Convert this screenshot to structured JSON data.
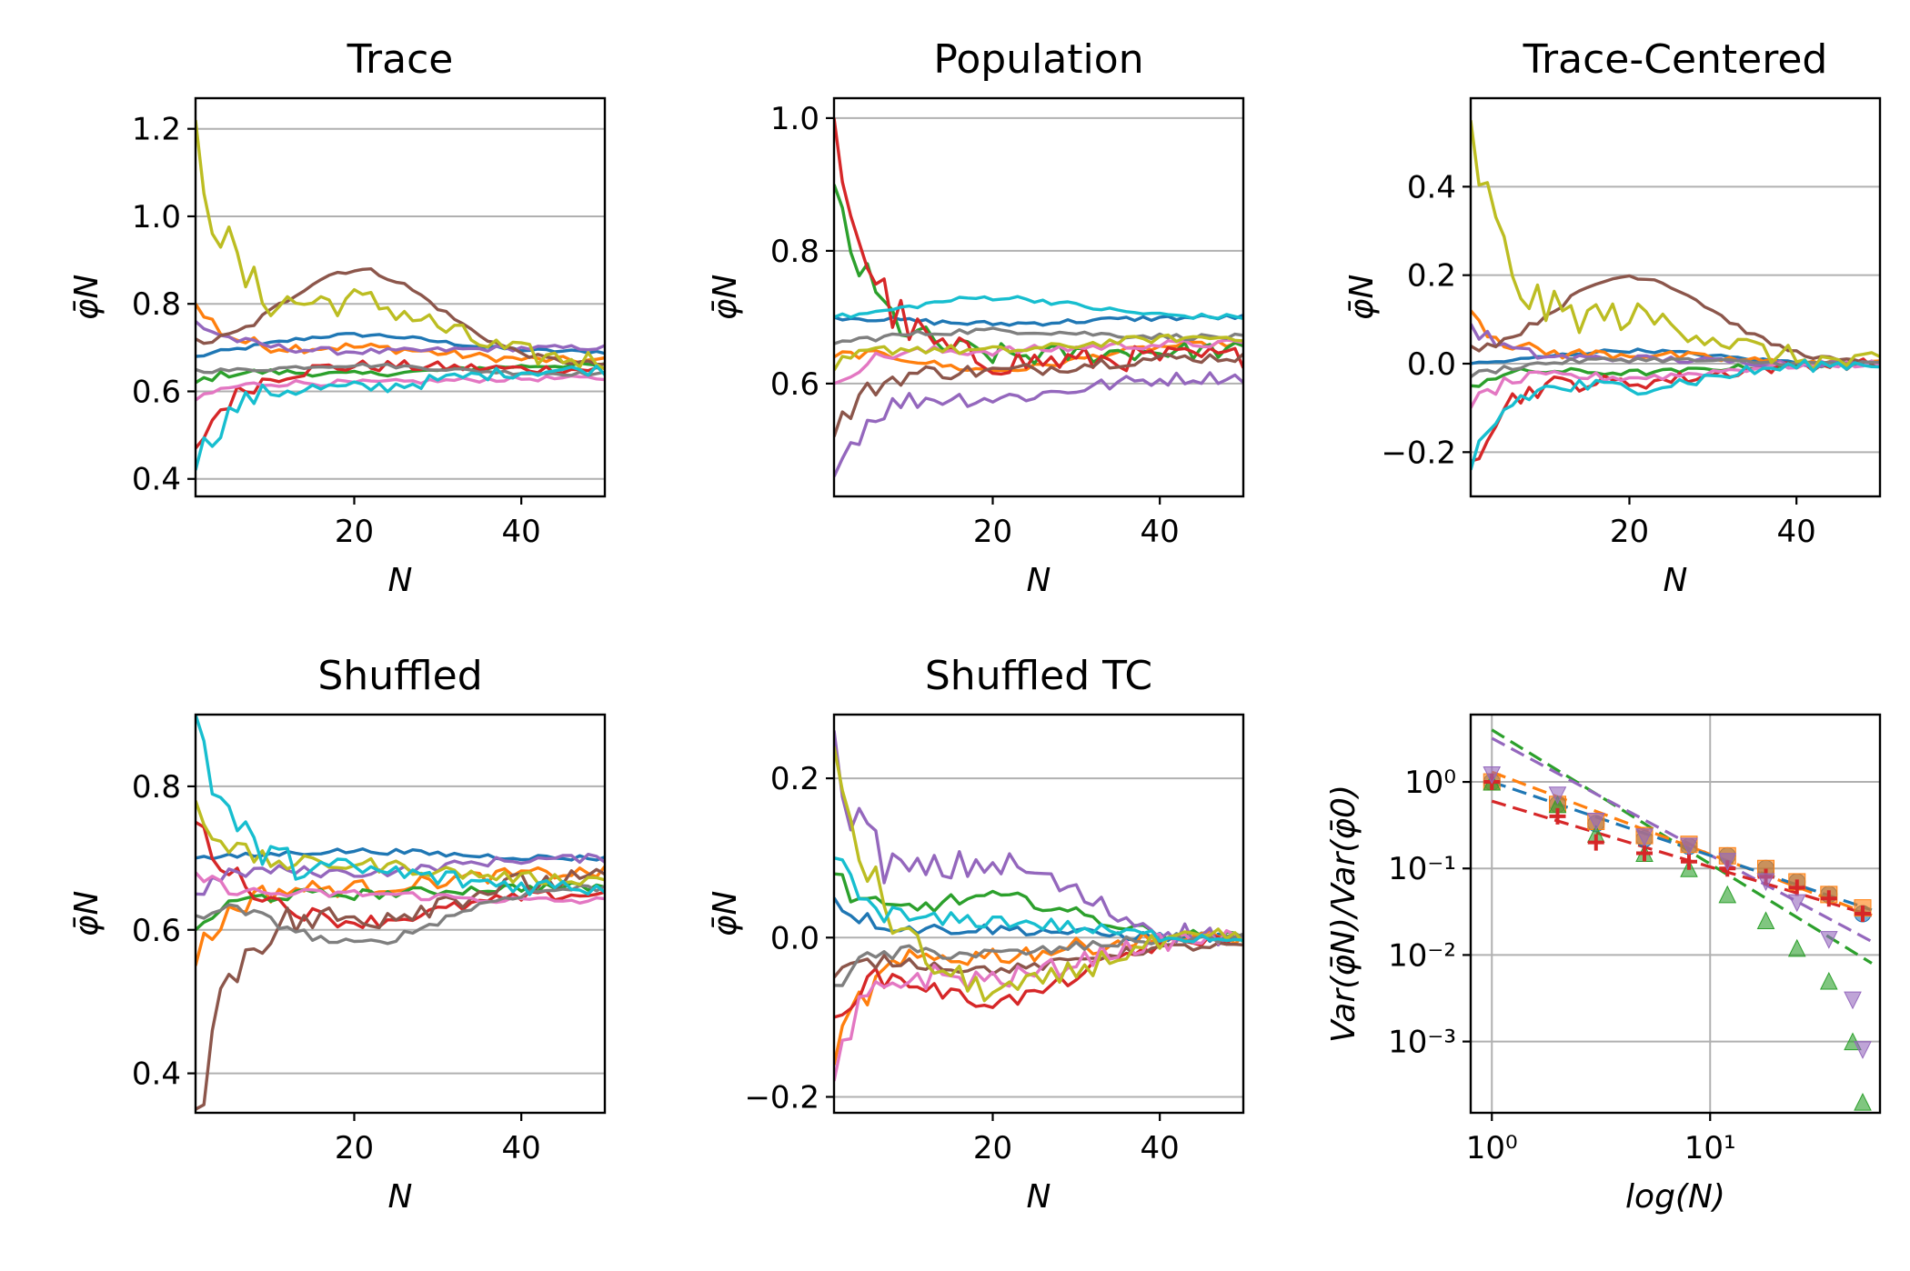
{
  "chart_data": [
    {
      "type": "line",
      "title": "Trace",
      "xlabel": "N",
      "ylabel": "φ̄N",
      "xlim": [
        1,
        50
      ],
      "ylim": [
        0.36,
        1.27
      ],
      "xticks": [
        20,
        40
      ],
      "yticks": [
        0.4,
        0.6,
        0.8,
        1.0,
        1.2
      ],
      "ytick_labels": [
        "0.4",
        "0.6",
        "0.8",
        "1.0",
        "1.2"
      ],
      "grid": "y",
      "series": [
        {
          "color": "#1f77b4",
          "start": 0.68,
          "end": 0.69,
          "mid": 0.73
        },
        {
          "color": "#ff7f0e",
          "start": 0.8,
          "end": 0.67,
          "mid": 0.7
        },
        {
          "color": "#2ca02c",
          "start": 0.62,
          "end": 0.66,
          "mid": 0.64
        },
        {
          "color": "#d62728",
          "start": 0.47,
          "end": 0.65,
          "mid": 0.66
        },
        {
          "color": "#9467bd",
          "start": 0.76,
          "end": 0.7,
          "mid": 0.69
        },
        {
          "color": "#8c564b",
          "start": 0.72,
          "end": 0.66,
          "mid": 0.88
        },
        {
          "color": "#e377c2",
          "start": 0.58,
          "end": 0.63,
          "mid": 0.62
        },
        {
          "color": "#7f7f7f",
          "start": 0.65,
          "end": 0.64,
          "mid": 0.66
        },
        {
          "color": "#bcbd22",
          "start": 1.22,
          "end": 0.67,
          "mid": 0.8
        },
        {
          "color": "#17becf",
          "start": 0.42,
          "end": 0.65,
          "mid": 0.61
        }
      ]
    },
    {
      "type": "line",
      "title": "Population",
      "xlabel": "N",
      "ylabel": "φ̄N",
      "xlim": [
        1,
        50
      ],
      "ylim": [
        0.43,
        1.03
      ],
      "xticks": [
        20,
        40
      ],
      "yticks": [
        0.6,
        0.8,
        1.0
      ],
      "ytick_labels": [
        "0.6",
        "0.8",
        "1.0"
      ],
      "grid": "y",
      "series": [
        {
          "color": "#1f77b4",
          "start": 0.7,
          "end": 0.7,
          "mid": 0.69
        },
        {
          "color": "#ff7f0e",
          "start": 0.64,
          "end": 0.66,
          "mid": 0.62
        },
        {
          "color": "#2ca02c",
          "start": 0.9,
          "end": 0.65,
          "mid": 0.64
        },
        {
          "color": "#d62728",
          "start": 1.0,
          "end": 0.64,
          "mid": 0.63
        },
        {
          "color": "#9467bd",
          "start": 0.46,
          "end": 0.61,
          "mid": 0.58
        },
        {
          "color": "#8c564b",
          "start": 0.52,
          "end": 0.64,
          "mid": 0.62
        },
        {
          "color": "#e377c2",
          "start": 0.6,
          "end": 0.66,
          "mid": 0.65
        },
        {
          "color": "#7f7f7f",
          "start": 0.66,
          "end": 0.67,
          "mid": 0.68
        },
        {
          "color": "#bcbd22",
          "start": 0.62,
          "end": 0.67,
          "mid": 0.65
        },
        {
          "color": "#17becf",
          "start": 0.7,
          "end": 0.7,
          "mid": 0.73
        }
      ]
    },
    {
      "type": "line",
      "title": "Trace-Centered",
      "xlabel": "N",
      "ylabel": "φ̄N",
      "xlim": [
        1,
        50
      ],
      "ylim": [
        -0.3,
        0.6
      ],
      "xticks": [
        20,
        40
      ],
      "yticks": [
        -0.2,
        0.0,
        0.2,
        0.4
      ],
      "ytick_labels": [
        "−0.2",
        "0.0",
        "0.2",
        "0.4"
      ],
      "grid": "y",
      "series": [
        {
          "color": "#1f77b4",
          "start": 0.0,
          "end": 0.0,
          "mid": 0.03
        },
        {
          "color": "#ff7f0e",
          "start": 0.12,
          "end": 0.0,
          "mid": 0.02
        },
        {
          "color": "#2ca02c",
          "start": -0.05,
          "end": 0.0,
          "mid": -0.02
        },
        {
          "color": "#d62728",
          "start": -0.22,
          "end": 0.0,
          "mid": -0.04
        },
        {
          "color": "#9467bd",
          "start": 0.09,
          "end": 0.0,
          "mid": 0.01
        },
        {
          "color": "#8c564b",
          "start": 0.04,
          "end": 0.0,
          "mid": 0.2
        },
        {
          "color": "#e377c2",
          "start": -0.1,
          "end": 0.0,
          "mid": -0.03
        },
        {
          "color": "#7f7f7f",
          "start": -0.03,
          "end": 0.0,
          "mid": 0.01
        },
        {
          "color": "#bcbd22",
          "start": 0.55,
          "end": 0.0,
          "mid": 0.1
        },
        {
          "color": "#17becf",
          "start": -0.24,
          "end": 0.0,
          "mid": -0.05
        }
      ]
    },
    {
      "type": "line",
      "title": "Shuffled",
      "xlabel": "N",
      "ylabel": "φ̄N",
      "xlim": [
        1,
        50
      ],
      "ylim": [
        0.345,
        0.9
      ],
      "xticks": [
        20,
        40
      ],
      "yticks": [
        0.4,
        0.6,
        0.8
      ],
      "ytick_labels": [
        "0.4",
        "0.6",
        "0.8"
      ],
      "grid": "y",
      "series": [
        {
          "color": "#1f77b4",
          "start": 0.7,
          "end": 0.7,
          "mid": 0.71
        },
        {
          "color": "#ff7f0e",
          "start": 0.55,
          "end": 0.68,
          "mid": 0.66
        },
        {
          "color": "#2ca02c",
          "start": 0.6,
          "end": 0.66,
          "mid": 0.65
        },
        {
          "color": "#d62728",
          "start": 0.75,
          "end": 0.65,
          "mid": 0.61
        },
        {
          "color": "#9467bd",
          "start": 0.65,
          "end": 0.7,
          "mid": 0.68
        },
        {
          "color": "#8c564b",
          "start": 0.35,
          "end": 0.67,
          "mid": 0.62
        },
        {
          "color": "#e377c2",
          "start": 0.68,
          "end": 0.64,
          "mid": 0.65
        },
        {
          "color": "#7f7f7f",
          "start": 0.62,
          "end": 0.66,
          "mid": 0.58
        },
        {
          "color": "#bcbd22",
          "start": 0.78,
          "end": 0.67,
          "mid": 0.69
        },
        {
          "color": "#17becf",
          "start": 0.9,
          "end": 0.66,
          "mid": 0.68
        }
      ]
    },
    {
      "type": "line",
      "title": "Shuffled TC",
      "xlabel": "N",
      "ylabel": "φ̄N",
      "xlim": [
        1,
        50
      ],
      "ylim": [
        -0.22,
        0.28
      ],
      "xticks": [
        20,
        40
      ],
      "yticks": [
        -0.2,
        0.0,
        0.2
      ],
      "ytick_labels": [
        "−0.2",
        "0.0",
        "0.2"
      ],
      "grid": "y",
      "series": [
        {
          "color": "#1f77b4",
          "start": 0.05,
          "end": 0.0,
          "mid": 0.01
        },
        {
          "color": "#ff7f0e",
          "start": -0.16,
          "end": 0.0,
          "mid": -0.02
        },
        {
          "color": "#2ca02c",
          "start": 0.08,
          "end": 0.0,
          "mid": 0.05
        },
        {
          "color": "#d62728",
          "start": -0.1,
          "end": 0.0,
          "mid": -0.08
        },
        {
          "color": "#9467bd",
          "start": 0.26,
          "end": 0.0,
          "mid": 0.09
        },
        {
          "color": "#8c564b",
          "start": -0.05,
          "end": -0.01,
          "mid": -0.04
        },
        {
          "color": "#e377c2",
          "start": -0.18,
          "end": 0.0,
          "mid": -0.05
        },
        {
          "color": "#7f7f7f",
          "start": -0.06,
          "end": 0.0,
          "mid": -0.02
        },
        {
          "color": "#bcbd22",
          "start": 0.24,
          "end": 0.0,
          "mid": -0.07
        },
        {
          "color": "#17becf",
          "start": 0.1,
          "end": 0.0,
          "mid": 0.02
        }
      ]
    },
    {
      "type": "scatter",
      "title": "",
      "xlabel": "log(N)",
      "ylabel": "Var(φ̄N)/Var(φ̄0)",
      "xscale": "log",
      "yscale": "log",
      "xlim": [
        0.8,
        60
      ],
      "ylim": [
        0.00015,
        6
      ],
      "xticks": [
        1,
        10
      ],
      "xtick_labels": [
        "10⁰",
        "10¹"
      ],
      "yticks": [
        0.001,
        0.01,
        0.1,
        1
      ],
      "ytick_labels": [
        "10⁻³",
        "10⁻²",
        "10⁻¹",
        "10⁰"
      ],
      "grid": "both",
      "series": [
        {
          "color": "#1f77b4",
          "marker": "circle",
          "x": [
            1,
            2,
            3,
            5,
            8,
            12,
            18,
            25,
            35,
            50
          ],
          "y": [
            1.0,
            0.55,
            0.33,
            0.22,
            0.18,
            0.14,
            0.1,
            0.07,
            0.05,
            0.03
          ]
        },
        {
          "color": "#ff7f0e",
          "marker": "square",
          "x": [
            1,
            2,
            3,
            5,
            8,
            12,
            18,
            25,
            35,
            50
          ],
          "y": [
            1.0,
            0.55,
            0.35,
            0.24,
            0.19,
            0.14,
            0.1,
            0.07,
            0.05,
            0.035
          ]
        },
        {
          "color": "#2ca02c",
          "marker": "triangle-up",
          "x": [
            1,
            2,
            3,
            5,
            8,
            12,
            18,
            25,
            35,
            45,
            50
          ],
          "y": [
            1.0,
            0.55,
            0.25,
            0.15,
            0.1,
            0.05,
            0.025,
            0.012,
            0.005,
            0.001,
            0.0002
          ]
        },
        {
          "color": "#d62728",
          "marker": "plus",
          "x": [
            1,
            2,
            3,
            5,
            8,
            12,
            18,
            25,
            35,
            50
          ],
          "y": [
            1.0,
            0.4,
            0.2,
            0.15,
            0.12,
            0.1,
            0.08,
            0.06,
            0.045,
            0.03
          ]
        },
        {
          "color": "#9467bd",
          "marker": "triangle-down",
          "x": [
            1,
            2,
            3,
            5,
            8,
            12,
            18,
            25,
            35,
            45,
            50
          ],
          "y": [
            1.2,
            0.7,
            0.35,
            0.23,
            0.18,
            0.12,
            0.07,
            0.04,
            0.015,
            0.003,
            0.0008
          ]
        }
      ],
      "fits": [
        {
          "color": "#2ca02c",
          "y_at_1": 4.0,
          "slope": -1.55
        },
        {
          "color": "#9467bd",
          "y_at_1": 3.2,
          "slope": -1.35
        },
        {
          "color": "#ff7f0e",
          "y_at_1": 1.3,
          "slope": -0.95
        },
        {
          "color": "#1f77b4",
          "y_at_1": 1.0,
          "slope": -0.85
        },
        {
          "color": "#d62728",
          "y_at_1": 0.6,
          "slope": -0.76
        }
      ]
    }
  ]
}
